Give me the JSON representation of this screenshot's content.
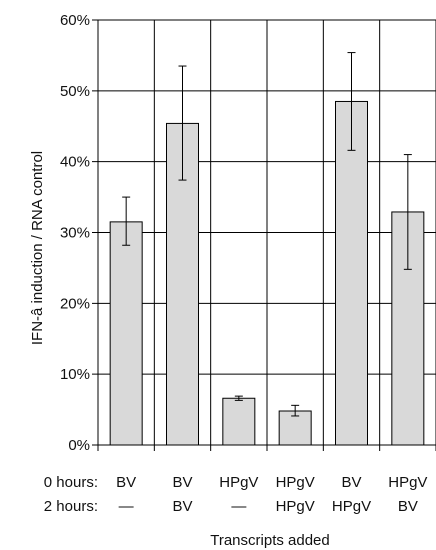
{
  "chart_data": {
    "type": "bar",
    "ylabel": "IFN-â induction / RNA control",
    "xlabel": "Transcripts added",
    "ylim": [
      0,
      60
    ],
    "yticks": [
      "0%",
      "10%",
      "20%",
      "30%",
      "40%",
      "50%",
      "60%"
    ],
    "grid": true,
    "bar_color": "#d9d9d9",
    "row_labels": [
      "0 hours:",
      "2 hours:"
    ],
    "categories": [
      {
        "h0": "BV",
        "h2": "—"
      },
      {
        "h0": "BV",
        "h2": "BV"
      },
      {
        "h0": "HPgV",
        "h2": "—"
      },
      {
        "h0": "HPgV",
        "h2": "HPgV"
      },
      {
        "h0": "BV",
        "h2": "HPgV"
      },
      {
        "h0": "HPgV",
        "h2": "BV"
      }
    ],
    "values": [
      31.5,
      45.4,
      6.6,
      4.8,
      48.5,
      32.9
    ],
    "err_low": [
      28.2,
      37.4,
      6.3,
      4.1,
      41.6,
      24.8
    ],
    "err_high": [
      35.0,
      53.5,
      6.9,
      5.6,
      55.4,
      41.0
    ]
  }
}
